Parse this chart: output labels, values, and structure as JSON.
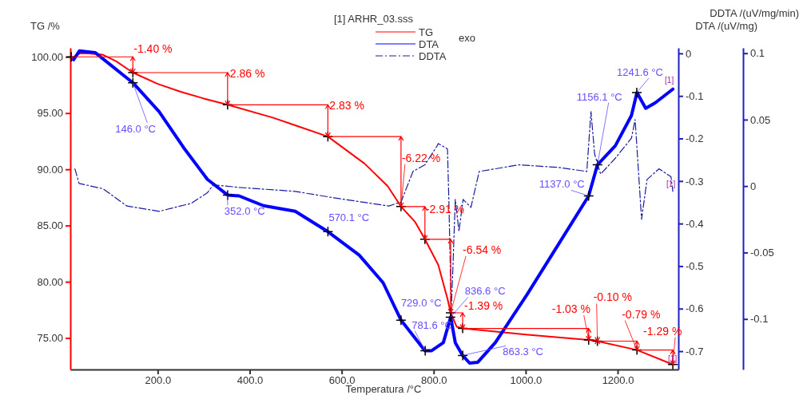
{
  "chart_data": {
    "type": "line",
    "title": "[1] ARHR_03.sss",
    "xlabel": "Temperatura /°C",
    "ylabel": "TG /%",
    "y2label": "DTA /(uV/mg)",
    "y3label": "DDTA /(uV/mg/min)",
    "annotations": [
      "exo",
      {
        "text": "[1]",
        "x": 1320,
        "y": 72.64
      },
      {
        "text": "[1]",
        "x": 1320,
        "y": 97.13
      },
      {
        "text": "[1]",
        "x": 1320,
        "y": 88.04
      },
      {
        "text": "-1.40 %",
        "x": 146,
        "y": 98.6
      },
      {
        "text": "2.86 %",
        "x": 352,
        "y": 95.74
      },
      {
        "text": "2.83 %",
        "x": 570,
        "y": 92.91
      },
      {
        "text": "-6.22 %",
        "x": 729,
        "y": 86.69
      },
      {
        "text": "-2.91 %",
        "x": 781,
        "y": 83.78
      },
      {
        "text": "-6.54 %",
        "x": 837,
        "y": 77.24
      },
      {
        "text": "-1.39 %",
        "x": 863,
        "y": 75.85
      },
      {
        "text": "-1.03 %",
        "x": 1137,
        "y": 74.82
      },
      {
        "text": "-0.10 %",
        "x": 1156,
        "y": 74.72
      },
      {
        "text": "-0.79 %",
        "x": 1242,
        "y": 73.93
      },
      {
        "text": "-1.29 %",
        "x": 1320,
        "y": 72.64
      },
      {
        "text": "146.0 °C",
        "x": 146,
        "y": 97.7
      },
      {
        "text": "352.0 °C",
        "x": 352,
        "y": 87.71
      },
      {
        "text": "570.1 °C",
        "x": 570.1,
        "y": 84.46
      },
      {
        "text": "729.0 °C",
        "x": 729,
        "y": 76.59
      },
      {
        "text": "781.6 °C",
        "x": 781.6,
        "y": 73.86
      },
      {
        "text": "836.6 °C",
        "x": 836.6,
        "y": 76.85
      },
      {
        "text": "863.3 °C",
        "x": 863.3,
        "y": 73.45
      },
      {
        "text": "1137.0 °C",
        "x": 1137,
        "y": 87.64
      },
      {
        "text": "1156.1 °C",
        "x": 1156.1,
        "y": 90.4
      },
      {
        "text": "1241.6 °C",
        "x": 1241.6,
        "y": 96.83
      }
    ],
    "legend": "top",
    "xlim": [
      10,
      1332
    ],
    "xticks": [
      {
        "value": 200,
        "label": "200.0"
      },
      {
        "value": 400,
        "label": "400.0"
      },
      {
        "value": 600,
        "label": "600.0"
      },
      {
        "value": 800,
        "label": "800.0"
      },
      {
        "value": 1000,
        "label": "1000.0"
      },
      {
        "value": 1200,
        "label": "1200.0"
      }
    ],
    "ylim": [
      72.2,
      100.8
    ],
    "yticks": [
      {
        "value": 75,
        "label": "75.00"
      },
      {
        "value": 80,
        "label": "80.00"
      },
      {
        "value": 85,
        "label": "85.00"
      },
      {
        "value": 90,
        "label": "90.00"
      },
      {
        "value": 95,
        "label": "95.00"
      },
      {
        "value": 100,
        "label": "100.00"
      }
    ],
    "y2lim": [
      -0.743,
      0.013
    ],
    "y2ticks": [
      -0.7,
      -0.6,
      -0.5,
      -0.4,
      -0.3,
      -0.2,
      -0.1,
      0
    ],
    "y3lim": [
      -0.138,
      0.104
    ],
    "y3ticks": [
      -0.1,
      -0.05,
      0,
      0.05,
      0.1
    ],
    "series": [
      {
        "name": "TG",
        "axis": "y",
        "color": "#ff0000",
        "line_style": "solid",
        "x": [
          15,
          30,
          50,
          80,
          110,
          146,
          200,
          250,
          300,
          352,
          450,
          500,
          570,
          650,
          700,
          729,
          760,
          781,
          810,
          830,
          837,
          850,
          863,
          1000,
          1137,
          1156,
          1242,
          1320
        ],
        "values": [
          99.9,
          100.3,
          100.3,
          100.2,
          99.6,
          98.6,
          97.6,
          96.9,
          96.3,
          95.74,
          94.6,
          93.9,
          92.91,
          90.5,
          88.5,
          86.69,
          85.3,
          83.78,
          81.5,
          78.5,
          77.24,
          76.0,
          75.85,
          75.3,
          74.82,
          74.72,
          73.93,
          72.64
        ]
      },
      {
        "name": "DTA",
        "axis": "y2",
        "color": "#0000ff",
        "line_style": "solid",
        "x": [
          17,
          30,
          64,
          146,
          203,
          256,
          308,
          352,
          377,
          430,
          499,
          570,
          638,
          690,
          729,
          781,
          795,
          821,
          837,
          847,
          863,
          878,
          896,
          934,
          1003,
          1073,
          1137,
          1156,
          1195,
          1230,
          1242,
          1261,
          1282,
          1320
        ],
        "values": [
          -0.015,
          0.006,
          0.002,
          -0.069,
          -0.137,
          -0.221,
          -0.296,
          -0.333,
          -0.335,
          -0.358,
          -0.371,
          -0.419,
          -0.474,
          -0.539,
          -0.627,
          -0.699,
          -0.699,
          -0.68,
          -0.62,
          -0.68,
          -0.71,
          -0.728,
          -0.726,
          -0.68,
          -0.567,
          -0.446,
          -0.335,
          -0.262,
          -0.217,
          -0.146,
          -0.092,
          -0.129,
          -0.116,
          -0.084
        ]
      },
      {
        "name": "DDTA",
        "axis": "y3",
        "color": "#1a1aa0",
        "line_style": "dashed",
        "x": [
          20,
          29,
          81,
          133,
          203,
          273,
          308,
          321,
          377,
          499,
          586,
          703,
          729,
          755,
          781,
          807,
          810,
          830,
          833,
          836,
          838,
          842,
          847,
          855,
          864,
          881,
          899,
          986,
          1073,
          1133,
          1142,
          1150,
          1163,
          1195,
          1230,
          1238,
          1247,
          1252,
          1264,
          1290,
          1316,
          1320
        ],
        "values": [
          0.013,
          0.002,
          -0.002,
          -0.015,
          -0.019,
          -0.013,
          -0.005,
          0.001,
          -0.001,
          -0.004,
          -0.009,
          -0.015,
          -0.012,
          0.011,
          0.016,
          0.03,
          0.032,
          0.028,
          -0.01,
          -0.058,
          -0.095,
          -0.06,
          -0.01,
          -0.034,
          -0.01,
          -0.016,
          0.011,
          0.016,
          0.014,
          0.011,
          0.056,
          0.024,
          0.009,
          0.021,
          0.036,
          0.05,
          0.002,
          -0.025,
          0.005,
          0.013,
          0.007,
          -0.004
        ]
      },
      {
        "type": "scatter",
        "axis": "y",
        "marker": "cross",
        "color": "#000000",
        "x": [
          12,
          146,
          352,
          570,
          729,
          781,
          837,
          863,
          1137,
          1156,
          1242,
          1320
        ],
        "values": [
          100.0,
          98.6,
          95.74,
          92.91,
          86.69,
          83.78,
          77.24,
          75.85,
          74.82,
          74.72,
          73.93,
          72.64
        ]
      },
      {
        "type": "scatter",
        "axis": "y2",
        "marker": "cross",
        "color": "#000000",
        "x": [
          146,
          352,
          570.1,
          729,
          781.6,
          836.6,
          863.3,
          1137,
          1156.1,
          1241.6
        ],
        "values": [
          -0.069,
          -0.333,
          -0.419,
          -0.627,
          -0.699,
          -0.62,
          -0.71,
          -0.335,
          -0.262,
          -0.092
        ]
      }
    ]
  }
}
